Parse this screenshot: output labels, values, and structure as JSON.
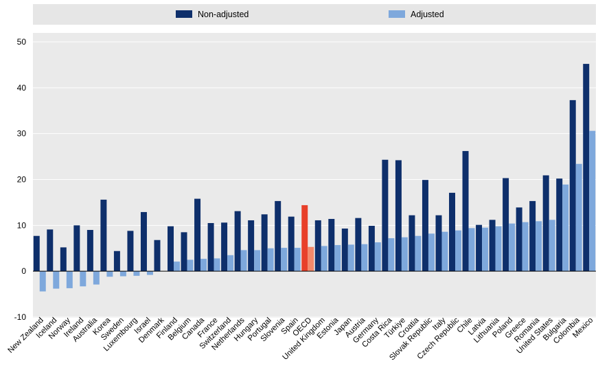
{
  "chart_data": {
    "type": "bar",
    "title": "",
    "xlabel": "",
    "ylabel": "",
    "ylim": [
      -10,
      50
    ],
    "yticks": [
      -10,
      0,
      10,
      20,
      30,
      40,
      50
    ],
    "grid": "horizontal",
    "legend_position": "top",
    "categories": [
      "New Zealand",
      "Iceland",
      "Norway",
      "Ireland",
      "Australia",
      "Korea",
      "Sweden",
      "Luxembourg",
      "Israel",
      "Denmark",
      "Finland",
      "Belgium",
      "Canada",
      "France",
      "Switzerland",
      "Netherlands",
      "Hungary",
      "Portugal",
      "Slovenia",
      "Spain",
      "OECD",
      "United Kingdom",
      "Estonia",
      "Japan",
      "Austria",
      "Germany",
      "Costa Rica",
      "Türkiye",
      "Croatia",
      "Slovak Republic",
      "Italy",
      "Czech Republic",
      "Chile",
      "Latvia",
      "Lithuania",
      "Poland",
      "Greece",
      "Romania",
      "United States",
      "Bulgaria",
      "Colombia",
      "Mexico"
    ],
    "highlight_category": "OECD",
    "series": [
      {
        "name": "Non-adjusted",
        "color": "#0e2f6b",
        "highlight_color": "#e8402a",
        "values": [
          7.7,
          9.1,
          5.2,
          10.0,
          9.0,
          15.6,
          4.4,
          8.8,
          12.9,
          6.8,
          9.8,
          8.5,
          15.8,
          10.5,
          10.6,
          13.1,
          11.1,
          12.4,
          15.3,
          11.9,
          14.4,
          11.1,
          11.4,
          9.3,
          11.6,
          9.9,
          24.3,
          24.2,
          12.2,
          19.9,
          12.2,
          17.1,
          26.2,
          10.1,
          11.2,
          20.3,
          13.9,
          15.3,
          20.9,
          20.2,
          37.3,
          45.2
        ]
      },
      {
        "name": "Adjusted",
        "color": "#7ea8dc",
        "highlight_color": "#f4896b",
        "values": [
          -4.4,
          -3.8,
          -3.7,
          -3.3,
          -2.9,
          -1.2,
          -1.1,
          -1.0,
          -0.8,
          0.0,
          2.1,
          2.5,
          2.7,
          2.8,
          3.5,
          4.6,
          4.6,
          5.0,
          5.1,
          5.1,
          5.3,
          5.5,
          5.7,
          5.8,
          5.9,
          6.3,
          7.2,
          7.4,
          7.7,
          8.2,
          8.6,
          8.9,
          9.4,
          9.5,
          9.8,
          10.4,
          10.7,
          10.9,
          11.2,
          18.9,
          23.4,
          30.6
        ]
      }
    ]
  }
}
